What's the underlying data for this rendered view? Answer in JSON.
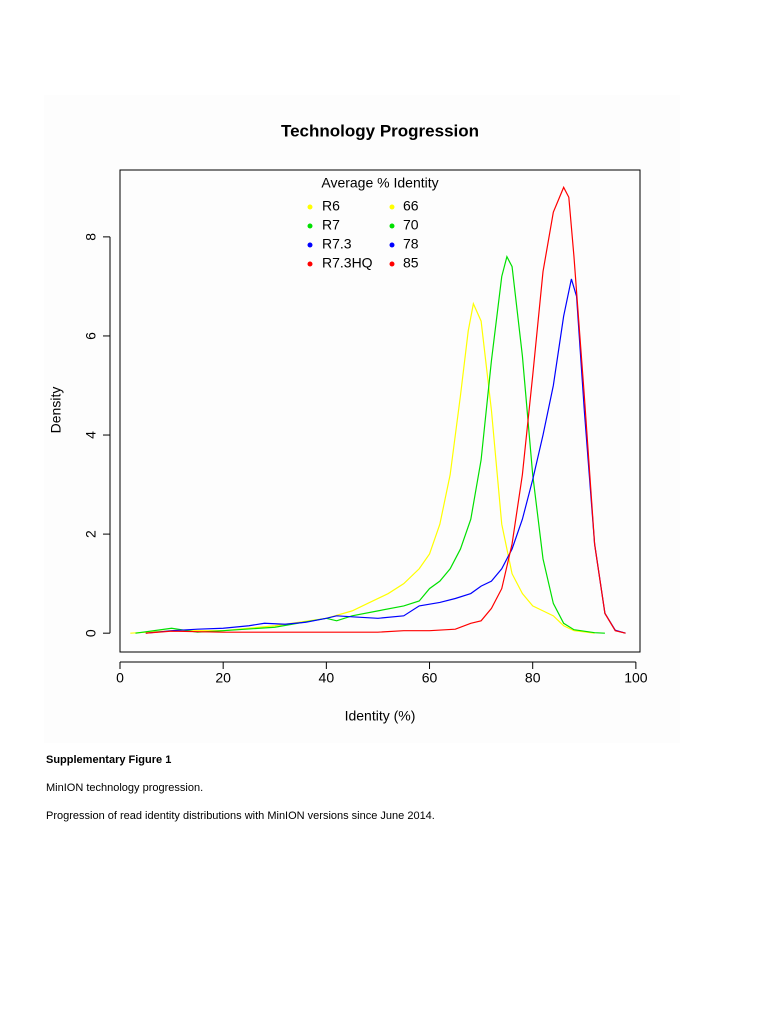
{
  "chart_data": {
    "type": "line",
    "title": "Technology Progression",
    "xlabel": "Identity (%)",
    "ylabel": "Density",
    "xlim": [
      0,
      100.8
    ],
    "ylim": [
      -0.38,
      9.35
    ],
    "xticks": [
      0,
      20,
      40,
      60,
      80,
      100
    ],
    "yticks": [
      0,
      2,
      4,
      6,
      8
    ],
    "legend_title": "Average % Identity",
    "legend": "top",
    "series": [
      {
        "name": "R6",
        "average": "66",
        "color": "#ffff00",
        "x": [
          2,
          10,
          20,
          30,
          40,
          45,
          48,
          52,
          55,
          58,
          60,
          62,
          64,
          66,
          67.5,
          68.5,
          70,
          72,
          74,
          76,
          78,
          80,
          82,
          84,
          86,
          88,
          92
        ],
        "values": [
          0,
          0.05,
          0.05,
          0.15,
          0.3,
          0.45,
          0.6,
          0.8,
          1.0,
          1.3,
          1.6,
          2.2,
          3.2,
          4.8,
          6.1,
          6.65,
          6.3,
          4.5,
          2.2,
          1.2,
          0.8,
          0.55,
          0.45,
          0.35,
          0.15,
          0.05,
          0
        ]
      },
      {
        "name": "R7",
        "average": "70",
        "color": "#00e000",
        "x": [
          3,
          10,
          15,
          20,
          30,
          40,
          42,
          45,
          50,
          55,
          58,
          60,
          62,
          64,
          66,
          68,
          70,
          72,
          74,
          75,
          76,
          78,
          80,
          82,
          84,
          86,
          88,
          92,
          94
        ],
        "values": [
          0,
          0.1,
          0.02,
          0.05,
          0.12,
          0.3,
          0.25,
          0.35,
          0.45,
          0.55,
          0.65,
          0.9,
          1.05,
          1.3,
          1.7,
          2.3,
          3.5,
          5.5,
          7.2,
          7.6,
          7.4,
          5.6,
          3.2,
          1.5,
          0.6,
          0.2,
          0.07,
          0.01,
          0
        ]
      },
      {
        "name": "R7.3",
        "average": "78",
        "color": "#0000ff",
        "x": [
          5,
          10,
          15,
          20,
          25,
          28,
          32,
          36,
          40,
          42,
          45,
          50,
          55,
          58,
          62,
          65,
          68,
          70,
          72,
          74,
          76,
          78,
          80,
          82,
          84,
          86,
          87.5,
          88.5,
          90,
          92,
          94,
          96,
          98
        ],
        "values": [
          0,
          0.05,
          0.08,
          0.1,
          0.15,
          0.2,
          0.18,
          0.22,
          0.3,
          0.35,
          0.33,
          0.3,
          0.35,
          0.55,
          0.62,
          0.7,
          0.8,
          0.95,
          1.05,
          1.3,
          1.7,
          2.3,
          3.1,
          4.0,
          5.0,
          6.4,
          7.15,
          6.8,
          4.5,
          1.8,
          0.4,
          0.06,
          0
        ]
      },
      {
        "name": "R7.3HQ",
        "average": "85",
        "color": "#ff0000",
        "x": [
          5,
          10,
          20,
          30,
          40,
          50,
          55,
          60,
          65,
          68,
          70,
          72,
          74,
          76,
          78,
          80,
          82,
          84,
          86,
          87,
          88,
          90,
          92,
          94,
          96,
          98
        ],
        "values": [
          0,
          0.04,
          0.02,
          0.02,
          0.02,
          0.02,
          0.05,
          0.05,
          0.08,
          0.2,
          0.25,
          0.5,
          0.9,
          1.8,
          3.2,
          5.2,
          7.3,
          8.5,
          9.0,
          8.8,
          7.6,
          4.8,
          1.8,
          0.4,
          0.05,
          0
        ]
      }
    ]
  },
  "caption": {
    "label": "Supplementary Figure 1",
    "title": "MinION technology progression.",
    "text": "Progression of read identity distributions with MinION versions since June 2014."
  }
}
